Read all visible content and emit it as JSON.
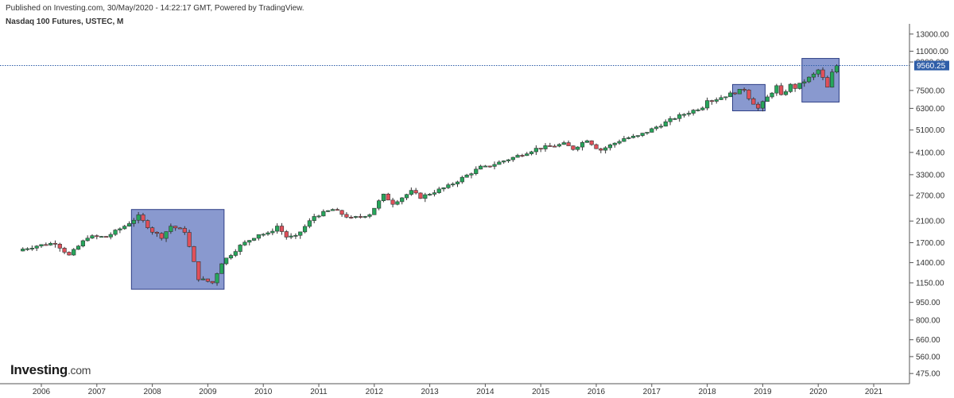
{
  "header": {
    "published": "Published on Investing.com, 30/May/2020 - 14:22:17 GMT, Powered by TradingView.",
    "symbol": "Nasdaq 100 Futures, USTEC, M"
  },
  "logo": {
    "brand": "Investing",
    "suffix": ".com"
  },
  "colors": {
    "up": "#26a65b",
    "down": "#e0505a",
    "price_line": "#2f5ea8",
    "highlight_fill": "#6f83c4",
    "highlight_stroke": "#2e3f86",
    "price_label_bg": "#2f5ea8"
  },
  "chart_data": {
    "type": "candlestick",
    "title": "Nasdaq 100 Futures, USTEC, M",
    "scale": "log",
    "ylim": [
      430,
      13500
    ],
    "y_ticks": [
      13000,
      11000,
      9900,
      7500,
      6300,
      5100,
      4100,
      3300,
      2700,
      2100,
      1700,
      1400,
      1150,
      950,
      800,
      660,
      560,
      475
    ],
    "y_tick_labels": [
      "13000.00",
      "11000.00",
      "9900.00",
      "7500.00",
      "6300.00",
      "5100.00",
      "4100.00",
      "3300.00",
      "2700.00",
      "2100.00",
      "1700.00",
      "1400.00",
      "1150.00",
      "950.00",
      "800.00",
      "660.00",
      "560.00",
      "475.00"
    ],
    "x_ticks": [
      "2006",
      "2007",
      "2008",
      "2009",
      "2010",
      "2011",
      "2012",
      "2013",
      "2014",
      "2015",
      "2016",
      "2017",
      "2018",
      "2019",
      "2020",
      "2021"
    ],
    "last_price": 9560.25,
    "last_price_label": "9560.25",
    "anchors": [
      [
        "2005-09",
        1600
      ],
      [
        "2005-12",
        1650
      ],
      [
        "2006-04",
        1700
      ],
      [
        "2006-07",
        1500
      ],
      [
        "2006-11",
        1800
      ],
      [
        "2007-03",
        1800
      ],
      [
        "2007-07",
        2000
      ],
      [
        "2007-10",
        2200
      ],
      [
        "2008-01",
        1900
      ],
      [
        "2008-03",
        1800
      ],
      [
        "2008-05",
        2000
      ],
      [
        "2008-08",
        1900
      ],
      [
        "2008-10",
        1400
      ],
      [
        "2008-11",
        1200
      ],
      [
        "2009-02",
        1150
      ],
      [
        "2009-04",
        1400
      ],
      [
        "2009-08",
        1650
      ],
      [
        "2009-12",
        1850
      ],
      [
        "2010-02",
        1850
      ],
      [
        "2010-04",
        2000
      ],
      [
        "2010-06",
        1800
      ],
      [
        "2010-08",
        1800
      ],
      [
        "2010-12",
        2200
      ],
      [
        "2011-04",
        2350
      ],
      [
        "2011-08",
        2150
      ],
      [
        "2011-12",
        2250
      ],
      [
        "2012-03",
        2700
      ],
      [
        "2012-05",
        2500
      ],
      [
        "2012-09",
        2800
      ],
      [
        "2012-11",
        2650
      ],
      [
        "2013-05",
        2950
      ],
      [
        "2013-12",
        3550
      ],
      [
        "2014-01",
        3550
      ],
      [
        "2014-07",
        3900
      ],
      [
        "2014-12",
        4250
      ],
      [
        "2015-06",
        4450
      ],
      [
        "2015-08",
        4250
      ],
      [
        "2015-11",
        4650
      ],
      [
        "2016-01",
        4300
      ],
      [
        "2016-02",
        4200
      ],
      [
        "2016-07",
        4700
      ],
      [
        "2016-10",
        4800
      ],
      [
        "2017-06",
        5750
      ],
      [
        "2017-12",
        6400
      ],
      [
        "2018-01",
        6900
      ],
      [
        "2018-02",
        6800
      ],
      [
        "2018-09",
        7600
      ],
      [
        "2018-10",
        7000
      ],
      [
        "2018-12",
        6300
      ],
      [
        "2019-04",
        7800
      ],
      [
        "2019-05",
        7100
      ],
      [
        "2019-07",
        7900
      ],
      [
        "2019-08",
        7700
      ],
      [
        "2019-12",
        8750
      ],
      [
        "2020-01",
        9150
      ],
      [
        "2020-02",
        8450
      ],
      [
        "2020-03",
        7700
      ],
      [
        "2020-04",
        8900
      ],
      [
        "2020-05",
        9560
      ]
    ],
    "highlight_boxes": [
      {
        "from": "2007-09",
        "to": "2009-04",
        "low": 1080,
        "high": 2350
      },
      {
        "from": "2018-07",
        "to": "2019-01",
        "low": 6150,
        "high": 7950
      },
      {
        "from": "2019-10",
        "to": "2020-05",
        "low": 6700,
        "high": 10250
      }
    ],
    "grid": false
  }
}
